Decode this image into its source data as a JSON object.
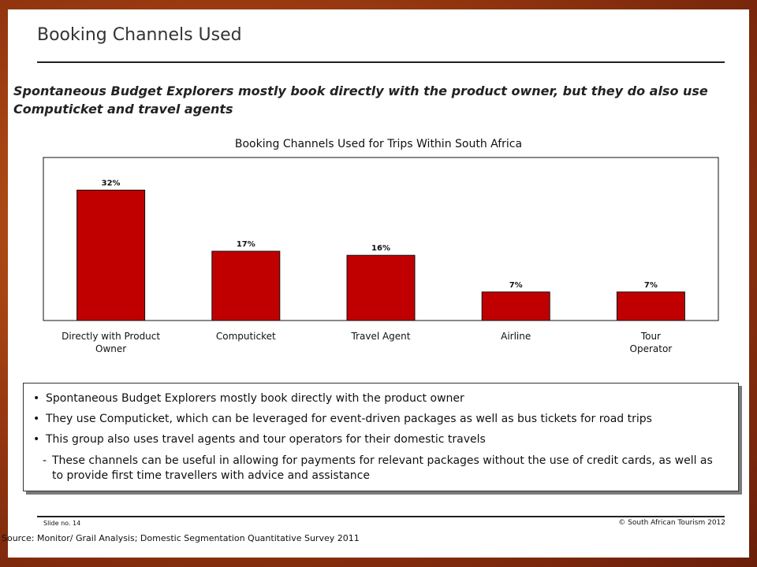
{
  "slide": {
    "title": "Booking Channels Used",
    "subtitle": "Spontaneous Budget Explorers mostly book directly with the product owner, but they do also use Computicket and travel agents",
    "slide_number": "Slide no. 14",
    "copyright": "© South African Tourism 2012",
    "source": "Source: Monitor/ Grail Analysis; Domestic Segmentation Quantitative Survey 2011"
  },
  "chart_data": {
    "type": "bar",
    "title": "Booking Channels Used for Trips Within South Africa",
    "categories": [
      [
        "Directly with Product",
        "Owner"
      ],
      [
        "Computicket"
      ],
      [
        "Travel Agent"
      ],
      [
        "Airline"
      ],
      [
        "Tour",
        "Operator"
      ]
    ],
    "values": [
      32,
      17,
      16,
      7,
      7
    ],
    "data_labels": [
      "32%",
      "17%",
      "16%",
      "7%",
      "7%"
    ],
    "ylim": [
      0,
      40
    ],
    "grid": false,
    "legend": "none",
    "bar_color": "#c00000"
  },
  "bullets": {
    "items": [
      "Spontaneous Budget Explorers mostly book directly with the product owner",
      "They use Computicket, which can be leveraged for event-driven packages as well as bus tickets for road trips",
      "This group also uses travel agents and tour operators for their domestic travels"
    ],
    "sub_item": "These channels can be useful in allowing for payments for relevant packages without the use of credit cards, as well as to provide first time travellers with advice and assistance",
    "bullet_glyph": "•",
    "dash_glyph": "-"
  }
}
